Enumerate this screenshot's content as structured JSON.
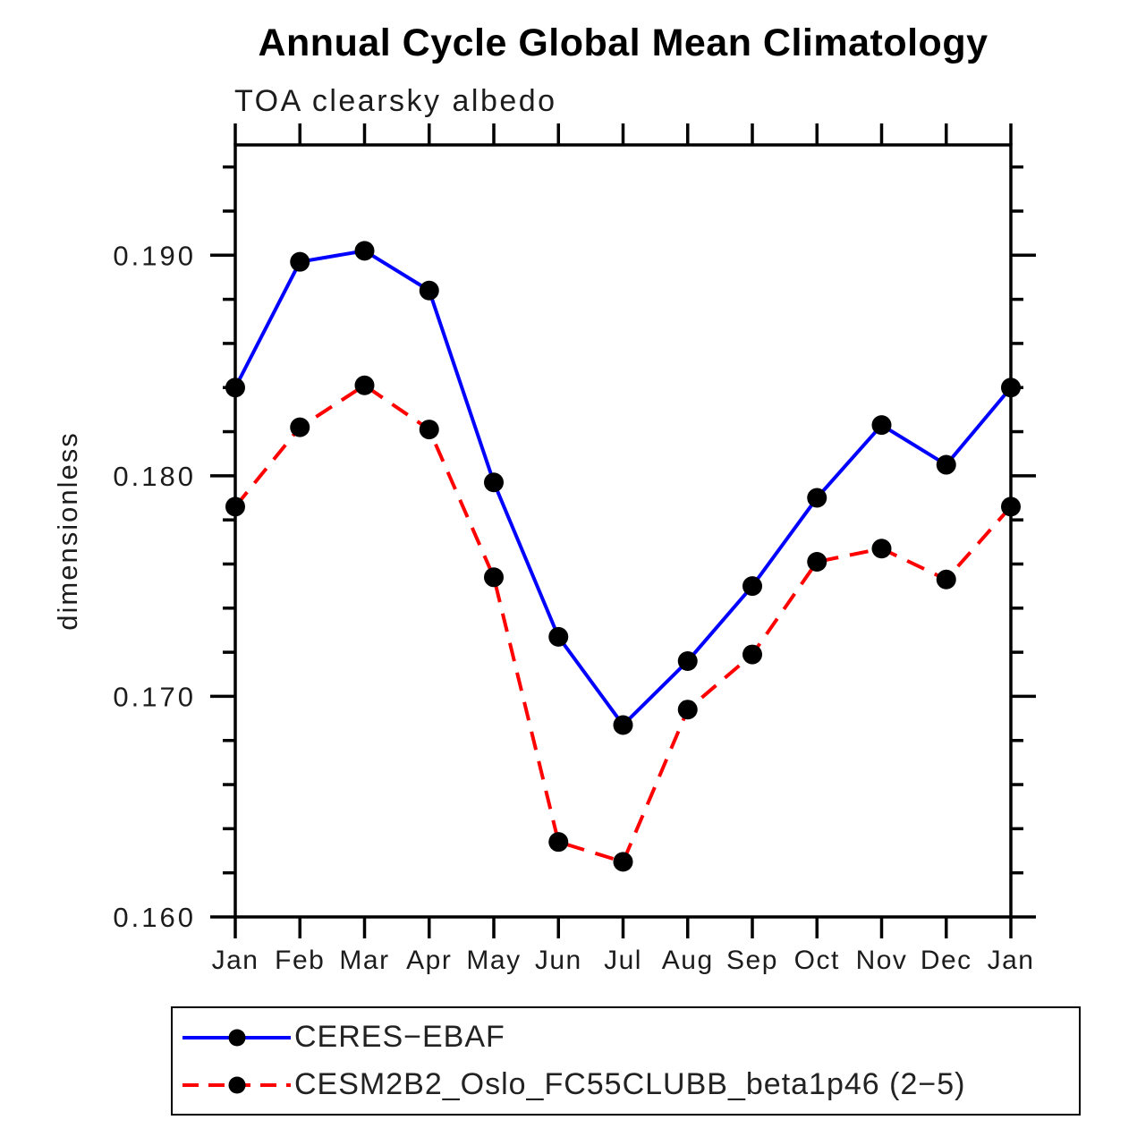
{
  "chart_data": {
    "type": "line",
    "title": "Annual Cycle Global Mean Climatology",
    "subtitle": "TOA clearsky albedo",
    "ylabel": "dimensionless",
    "xlabel": "",
    "categories": [
      "Jan",
      "Feb",
      "Mar",
      "Apr",
      "May",
      "Jun",
      "Jul",
      "Aug",
      "Sep",
      "Oct",
      "Nov",
      "Dec",
      "Jan"
    ],
    "series": [
      {
        "name": "CERES−EBAF",
        "color": "#0000ff",
        "line_style": "solid",
        "marker": "filled-circle",
        "marker_color": "#000000",
        "values": [
          0.184,
          0.1897,
          0.1902,
          0.1884,
          0.1797,
          0.1727,
          0.1687,
          0.1716,
          0.175,
          0.179,
          0.1823,
          0.1805,
          0.184
        ]
      },
      {
        "name": "CESM2B2_Oslo_FC55CLUBB_beta1p46 (2−5)",
        "color": "#ff0000",
        "line_style": "dashed",
        "marker": "filled-circle",
        "marker_color": "#000000",
        "values": [
          0.1786,
          0.1822,
          0.1841,
          0.1821,
          0.1754,
          0.1634,
          0.1625,
          0.1694,
          0.1719,
          0.1761,
          0.1767,
          0.1753,
          0.1786
        ]
      }
    ],
    "ylim": [
      0.16,
      0.195
    ],
    "ytick_values": [
      0.16,
      0.17,
      0.18,
      0.19
    ],
    "ytick_labels": [
      "0.160",
      "0.170",
      "0.180",
      "0.190"
    ],
    "ytick_minor_step": 0.002,
    "grid": false,
    "legend_position": "bottom-left",
    "axis_color": "#000000",
    "text_color": "#1c1c1c"
  }
}
